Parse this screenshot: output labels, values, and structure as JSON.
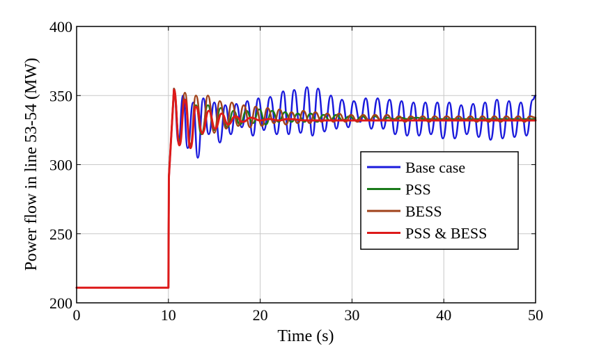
{
  "chart_data": {
    "type": "line",
    "xlabel": "Time (s)",
    "ylabel": "Power flow in line 53-54 (MW)",
    "xlim": [
      0,
      50
    ],
    "ylim": [
      200,
      400
    ],
    "xticks": [
      0,
      10,
      20,
      30,
      40,
      50
    ],
    "yticks": [
      200,
      250,
      300,
      350,
      400
    ],
    "grid": true,
    "legend_position": "right",
    "series": [
      {
        "name": "Base case",
        "color": "#1a1adc",
        "x": [
          0,
          10,
          10.05,
          10.6,
          11.1,
          11.6,
          12.1,
          12.7,
          13.2,
          13.8,
          14.4,
          15.0,
          15.6,
          16.2,
          16.8,
          17.4,
          18.0,
          18.6,
          19.2,
          19.8,
          20.4,
          21.1,
          21.8,
          22.5,
          23.1,
          23.7,
          24.4,
          25.1,
          25.7,
          26.3,
          27.0,
          27.7,
          28.3,
          28.9,
          29.6,
          30.2,
          30.9,
          31.5,
          32.1,
          32.8,
          33.4,
          34.1,
          34.7,
          35.4,
          36.0,
          36.7,
          37.3,
          38.0,
          38.6,
          39.3,
          39.9,
          40.6,
          41.2,
          41.9,
          42.5,
          43.2,
          43.8,
          44.5,
          45.1,
          45.8,
          46.4,
          47.1,
          47.7,
          48.4,
          49.0,
          49.7,
          50.0
        ],
        "y": [
          211,
          211,
          290,
          355,
          316,
          350,
          312,
          345,
          305,
          348,
          322,
          345,
          316,
          343,
          322,
          344,
          327,
          346,
          321,
          348,
          325,
          349,
          322,
          353,
          322,
          354,
          323,
          356,
          321,
          355,
          324,
          350,
          326,
          347,
          327,
          346,
          331,
          348,
          326,
          348,
          326,
          347,
          322,
          346,
          321,
          345,
          321,
          345,
          322,
          345,
          319,
          345,
          319,
          343,
          322,
          344,
          320,
          345,
          318,
          347,
          319,
          346,
          320,
          345,
          321,
          347,
          350
        ]
      },
      {
        "name": "PSS",
        "color": "#1a7a1a",
        "x": [
          0,
          10,
          10.05,
          10.6,
          11.2,
          11.8,
          12.4,
          13.0,
          13.6,
          14.3,
          15.0,
          15.7,
          16.4,
          17.1,
          17.8,
          18.5,
          19.2,
          19.9,
          20.6,
          21.3,
          22.0,
          22.7,
          23.4,
          24.1,
          24.8,
          25.5,
          26.2,
          26.9,
          27.6,
          28.3,
          29.0,
          29.7,
          30.4,
          31.1,
          31.8,
          32.5,
          33.2,
          33.9,
          34.6,
          35.3,
          36.0,
          37.0,
          38.0,
          40.0,
          45.0,
          50.0
        ],
        "y": [
          211,
          211,
          292,
          353,
          318,
          346,
          314,
          343,
          322,
          343,
          325,
          341,
          327,
          339,
          329,
          339,
          330,
          340,
          329,
          339,
          331,
          338,
          331,
          337,
          331,
          337,
          331,
          336,
          332,
          336,
          332,
          335,
          332,
          335,
          332,
          335,
          332,
          334,
          333,
          334,
          333,
          334,
          333,
          333,
          333,
          333
        ]
      },
      {
        "name": "BESS",
        "color": "#a0421a",
        "x": [
          0,
          10,
          10.05,
          10.6,
          11.2,
          11.8,
          12.4,
          13.0,
          13.7,
          14.3,
          15.0,
          15.6,
          16.3,
          16.9,
          17.6,
          18.2,
          18.9,
          19.5,
          20.2,
          20.8,
          21.5,
          22.1,
          22.8,
          23.4,
          24.1,
          24.7,
          25.4,
          26.0,
          26.7,
          27.3,
          28.0,
          28.6,
          29.3,
          29.9,
          30.6,
          31.2,
          31.9,
          32.5,
          33.2,
          33.8,
          34.5,
          35.1,
          35.8,
          36.4,
          37.1,
          37.7,
          38.4,
          39.0,
          39.7,
          40.3,
          41.0,
          41.6,
          42.3,
          42.9,
          43.6,
          44.2,
          44.9,
          45.5,
          46.2,
          46.8,
          47.5,
          48.1,
          48.8,
          49.4,
          50.0
        ],
        "y": [
          211,
          211,
          292,
          355,
          315,
          352,
          315,
          350,
          322,
          350,
          323,
          346,
          326,
          345,
          328,
          343,
          327,
          342,
          328,
          341,
          330,
          340,
          329,
          338,
          330,
          339,
          330,
          338,
          331,
          337,
          331,
          337,
          331,
          336,
          331,
          336,
          332,
          336,
          332,
          336,
          332,
          335,
          331,
          335,
          332,
          335,
          331,
          335,
          332,
          335,
          332,
          335,
          332,
          335,
          331,
          335,
          331,
          335,
          331,
          335,
          332,
          335,
          331,
          335,
          334
        ]
      },
      {
        "name": "PSS & BESS",
        "color": "#dd1a1a",
        "x": [
          0,
          10,
          10.05,
          10.6,
          11.2,
          11.8,
          12.4,
          13.0,
          13.7,
          14.4,
          15.1,
          15.8,
          16.5,
          17.3,
          18.1,
          19.0,
          20.0,
          21.0,
          22.0,
          23.0,
          25.0,
          30.0,
          35.0,
          40.0,
          45.0,
          50.0
        ],
        "y": [
          211,
          211,
          291,
          354,
          314,
          347,
          312,
          342,
          323,
          339,
          326,
          337,
          329,
          335,
          331,
          334,
          332,
          333,
          332,
          333,
          332,
          332,
          332,
          332,
          332,
          332
        ]
      }
    ]
  }
}
